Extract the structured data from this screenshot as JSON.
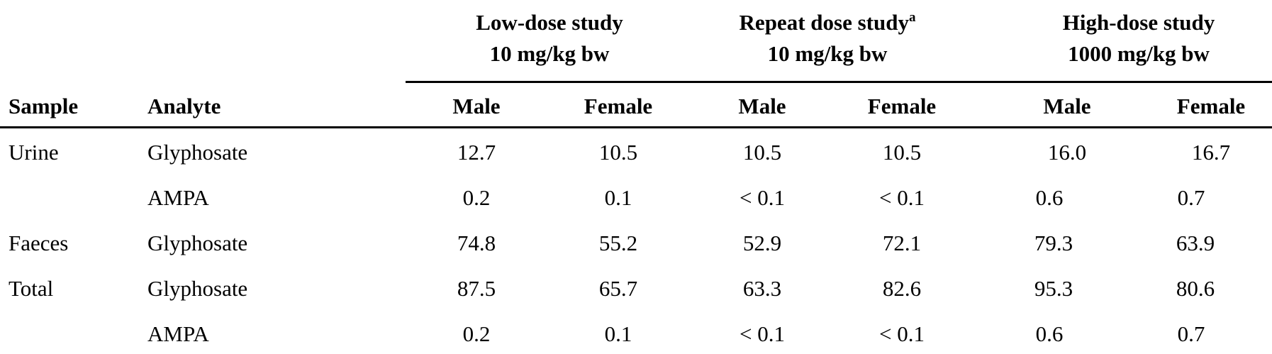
{
  "table": {
    "groups": [
      {
        "title": "Low-dose study",
        "title_sup": "",
        "dose": "10 mg/kg bw"
      },
      {
        "title": "Repeat dose study",
        "title_sup": "a",
        "dose": "10 mg/kg bw"
      },
      {
        "title": "High-dose study",
        "title_sup": "",
        "dose": "1000 mg/kg bw"
      }
    ],
    "columns": {
      "sample": "Sample",
      "analyte": "Analyte",
      "sub": [
        "Male",
        "Female",
        "Male",
        "Female",
        "Male",
        "Female"
      ]
    },
    "rows": [
      {
        "sample": "Urine",
        "analyte": "Glyphosate",
        "values": [
          "12.7",
          "10.5",
          "10.5",
          "10.5",
          "16.0",
          "16.7"
        ]
      },
      {
        "sample": "",
        "analyte": "AMPA",
        "values": [
          "0.2",
          "0.1",
          "< 0.1",
          "< 0.1",
          "0.6",
          "0.7"
        ]
      },
      {
        "sample": "Faeces",
        "analyte": "Glyphosate",
        "values": [
          "74.8",
          "55.2",
          "52.9",
          "72.1",
          "79.3",
          "63.9"
        ]
      },
      {
        "sample": "Total",
        "analyte": "Glyphosate",
        "values": [
          "87.5",
          "65.7",
          "63.3",
          "82.6",
          "95.3",
          "80.6"
        ]
      },
      {
        "sample": "",
        "analyte": "AMPA",
        "values": [
          "0.2",
          "0.1",
          "< 0.1",
          "< 0.1",
          "0.6",
          "0.7"
        ]
      }
    ]
  }
}
